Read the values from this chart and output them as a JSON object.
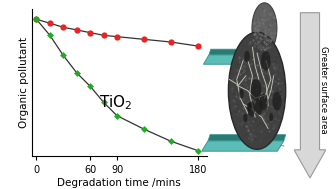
{
  "red_x": [
    0,
    15,
    30,
    45,
    60,
    75,
    90,
    120,
    150,
    180
  ],
  "red_y": [
    1.0,
    0.97,
    0.94,
    0.92,
    0.9,
    0.88,
    0.87,
    0.85,
    0.83,
    0.8
  ],
  "green_x": [
    0,
    15,
    30,
    45,
    60,
    75,
    90,
    120,
    150,
    180
  ],
  "green_y": [
    1.0,
    0.88,
    0.73,
    0.6,
    0.5,
    0.38,
    0.28,
    0.18,
    0.09,
    0.02
  ],
  "red_color": "#ee2222",
  "green_color": "#22aa22",
  "line_color": "#333333",
  "xlabel": "Degradation time /mins",
  "ylabel": "Organic pollutant",
  "xticks": [
    0,
    60,
    90,
    180
  ],
  "xlim": [
    -5,
    190
  ],
  "ylim": [
    -0.02,
    1.08
  ],
  "arrow_text": "Greater surface area",
  "arrow_color": "#d8d8d8",
  "arrow_edge_color": "#999999",
  "background_color": "#ffffff",
  "teal_color": "#5bbdb5",
  "teal_edge": "#3a9990",
  "teal_dark": "#2a7a76"
}
